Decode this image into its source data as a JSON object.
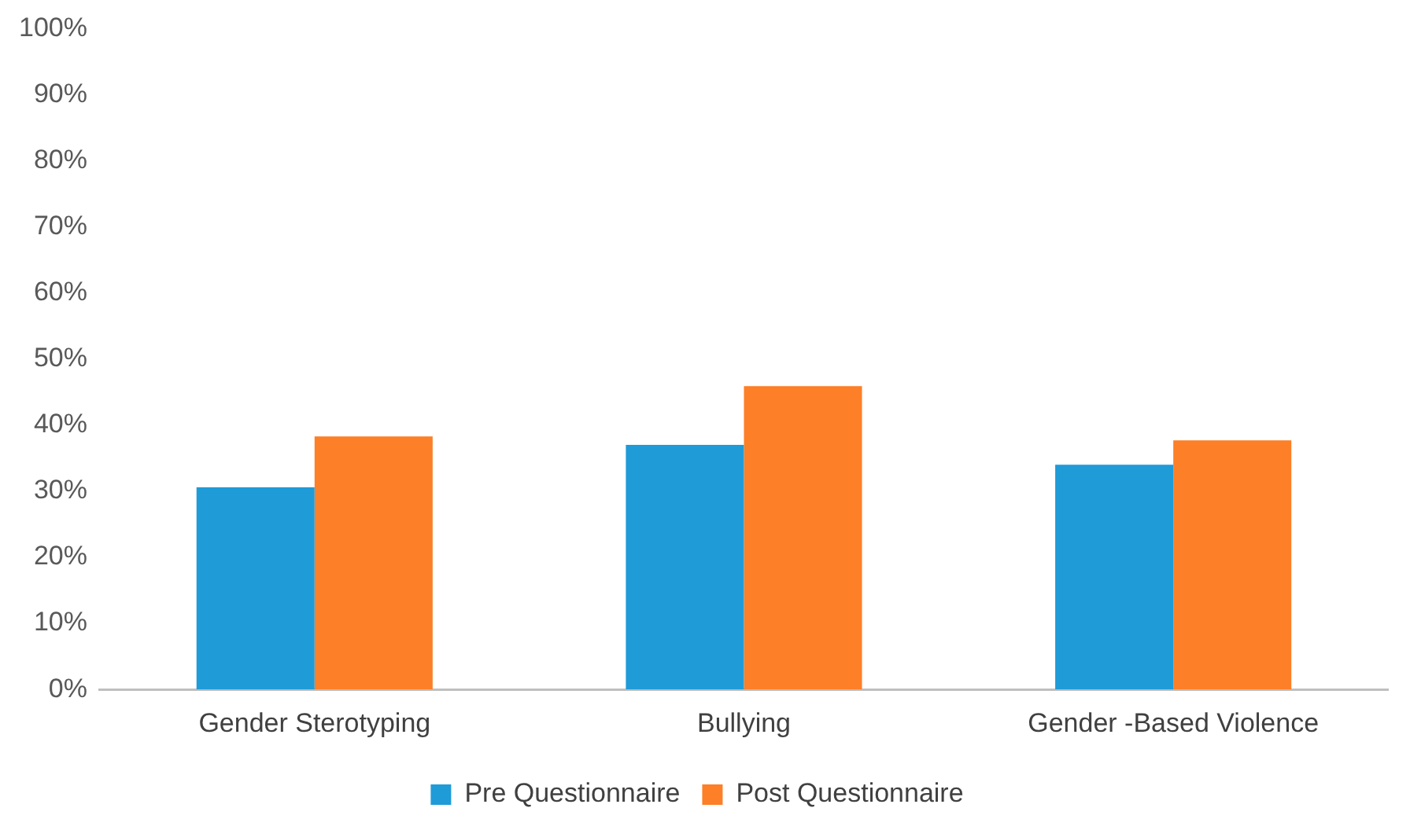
{
  "chart_data": {
    "type": "bar",
    "categories": [
      "Gender Sterotyping",
      "Bullying",
      "Gender -Based Violence"
    ],
    "series": [
      {
        "name": "Pre Questionnaire",
        "color": "#1f9bd7",
        "values": [
          30.6,
          37.0,
          34.0
        ]
      },
      {
        "name": "Post Questionnaire",
        "color": "#fd7f28",
        "values": [
          38.3,
          45.9,
          37.7
        ]
      }
    ],
    "ylim": [
      0,
      100
    ],
    "yticks": [
      {
        "value": 0,
        "label": "0%"
      },
      {
        "value": 10,
        "label": "10%"
      },
      {
        "value": 20,
        "label": "20%"
      },
      {
        "value": 30,
        "label": "30%"
      },
      {
        "value": 40,
        "label": "40%"
      },
      {
        "value": 50,
        "label": "50%"
      },
      {
        "value": 60,
        "label": "60%"
      },
      {
        "value": 70,
        "label": "70%"
      },
      {
        "value": 80,
        "label": "80%"
      },
      {
        "value": 90,
        "label": "90%"
      },
      {
        "value": 100,
        "label": "100%"
      }
    ],
    "grid": false,
    "legend": "bottom"
  }
}
